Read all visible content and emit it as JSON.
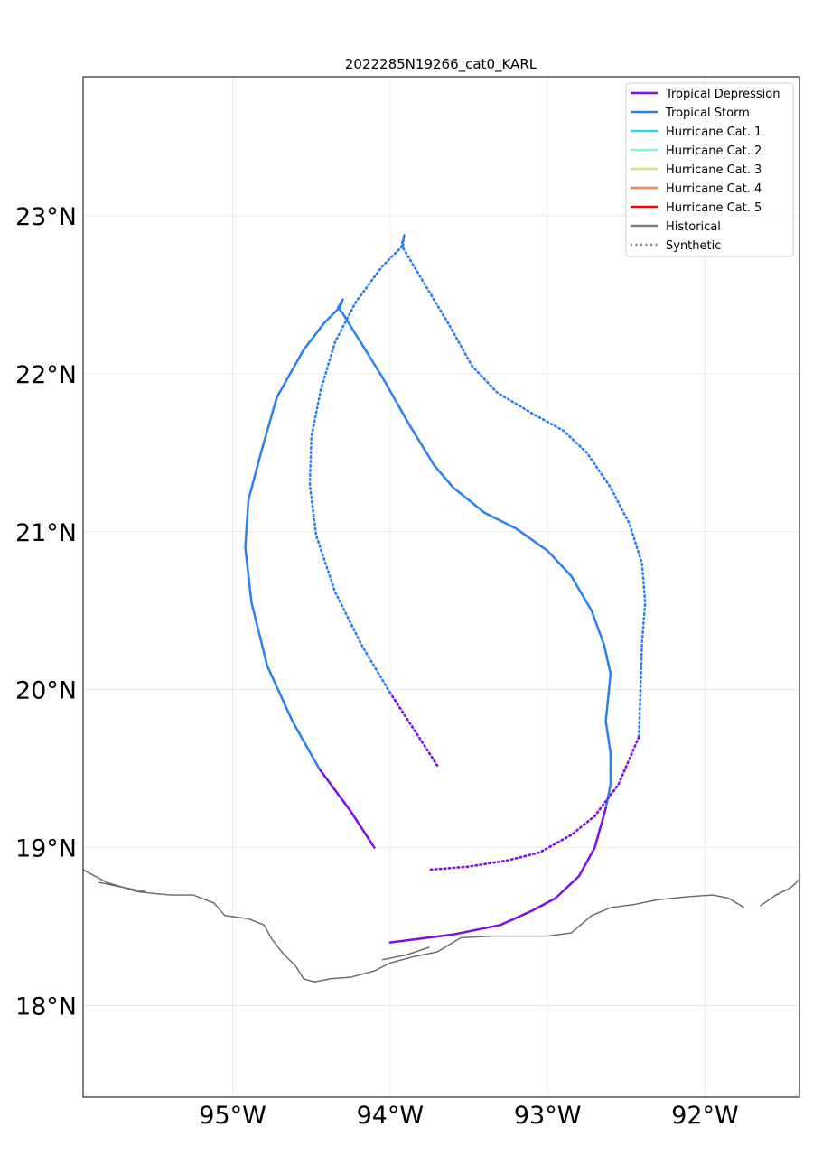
{
  "map": {
    "title": "2022285N19266_cat0_KARL",
    "extent": {
      "lon": [
        -95.95,
        -91.4
      ],
      "lat": [
        17.42,
        23.88
      ]
    },
    "lat_ticks": [
      {
        "value": 18,
        "label": "18°N"
      },
      {
        "value": 19,
        "label": "19°N"
      },
      {
        "value": 20,
        "label": "20°N"
      },
      {
        "value": 21,
        "label": "21°N"
      },
      {
        "value": 22,
        "label": "22°N"
      },
      {
        "value": 23,
        "label": "23°N"
      }
    ],
    "lon_ticks": [
      {
        "value": -95,
        "label": "95°W"
      },
      {
        "value": -94,
        "label": "94°W"
      },
      {
        "value": -93,
        "label": "93°W"
      },
      {
        "value": -92,
        "label": "92°W"
      }
    ],
    "grid": true,
    "coastline_color": "#666666"
  },
  "legend": {
    "placement": "top-right",
    "entries": [
      {
        "label": "Tropical Depression",
        "color": "#7b0ee9",
        "style": "solid"
      },
      {
        "label": "Tropical Storm",
        "color": "#2b80f0",
        "style": "solid"
      },
      {
        "label": "Hurricane Cat. 1",
        "color": "#33d6e0",
        "style": "solid"
      },
      {
        "label": "Hurricane Cat. 2",
        "color": "#85f8c3",
        "style": "solid"
      },
      {
        "label": "Hurricane Cat. 3",
        "color": "#d0e183",
        "style": "solid"
      },
      {
        "label": "Hurricane Cat. 4",
        "color": "#ff8049",
        "style": "solid"
      },
      {
        "label": "Hurricane Cat. 5",
        "color": "#ff0000",
        "style": "solid"
      },
      {
        "label": "Historical",
        "color": "#808080",
        "style": "solid"
      },
      {
        "label": "Synthetic",
        "color": "#808080",
        "style": "dotted"
      }
    ]
  },
  "tracks": [
    {
      "type": "historical",
      "segments": [
        {
          "category": "Tropical Depression",
          "color": "#7b0ee9",
          "points": [
            [
              -94.1,
              19.0
            ],
            [
              -94.25,
              19.23
            ],
            [
              -94.45,
              19.5
            ]
          ]
        },
        {
          "category": "Tropical Storm",
          "color": "#2b80f0",
          "points": [
            [
              -94.45,
              19.5
            ],
            [
              -94.62,
              19.8
            ],
            [
              -94.78,
              20.15
            ],
            [
              -94.88,
              20.55
            ],
            [
              -94.92,
              20.9
            ],
            [
              -94.9,
              21.2
            ],
            [
              -94.82,
              21.5
            ],
            [
              -94.72,
              21.85
            ],
            [
              -94.55,
              22.15
            ],
            [
              -94.42,
              22.32
            ],
            [
              -94.32,
              22.42
            ],
            [
              -94.3,
              22.47
            ],
            [
              -94.33,
              22.42
            ],
            [
              -94.3,
              22.38
            ],
            [
              -94.2,
              22.22
            ],
            [
              -94.05,
              21.98
            ],
            [
              -93.88,
              21.68
            ],
            [
              -93.72,
              21.42
            ],
            [
              -93.6,
              21.28
            ],
            [
              -93.4,
              21.12
            ],
            [
              -93.2,
              21.02
            ],
            [
              -93.0,
              20.88
            ],
            [
              -92.85,
              20.72
            ],
            [
              -92.72,
              20.5
            ],
            [
              -92.64,
              20.28
            ],
            [
              -92.6,
              20.1
            ],
            [
              -92.63,
              19.8
            ],
            [
              -92.6,
              19.6
            ],
            [
              -92.6,
              19.4
            ],
            [
              -92.63,
              19.25
            ]
          ]
        },
        {
          "category": "Tropical Depression",
          "color": "#7b0ee9",
          "points": [
            [
              -92.63,
              19.25
            ],
            [
              -92.7,
              19.0
            ],
            [
              -92.8,
              18.82
            ],
            [
              -92.95,
              18.68
            ],
            [
              -93.1,
              18.6
            ],
            [
              -93.3,
              18.51
            ],
            [
              -93.6,
              18.45
            ],
            [
              -94.0,
              18.4
            ]
          ]
        }
      ]
    },
    {
      "type": "synthetic",
      "segments": [
        {
          "category": "Tropical Depression",
          "color": "#7b0ee9",
          "points": [
            [
              -93.7,
              19.52
            ],
            [
              -93.85,
              19.75
            ],
            [
              -94.0,
              19.98
            ]
          ]
        },
        {
          "category": "Tropical Storm",
          "color": "#2b80f0",
          "points": [
            [
              -94.0,
              19.98
            ],
            [
              -94.18,
              20.28
            ],
            [
              -94.35,
              20.62
            ],
            [
              -94.47,
              20.98
            ],
            [
              -94.51,
              21.3
            ],
            [
              -94.5,
              21.6
            ],
            [
              -94.44,
              21.9
            ],
            [
              -94.35,
              22.2
            ],
            [
              -94.22,
              22.45
            ],
            [
              -94.05,
              22.68
            ],
            [
              -93.93,
              22.8
            ],
            [
              -93.91,
              22.88
            ],
            [
              -93.92,
              22.8
            ],
            [
              -93.8,
              22.6
            ],
            [
              -93.62,
              22.3
            ],
            [
              -93.48,
              22.05
            ],
            [
              -93.32,
              21.88
            ],
            [
              -93.1,
              21.75
            ],
            [
              -92.9,
              21.64
            ],
            [
              -92.75,
              21.5
            ],
            [
              -92.6,
              21.28
            ],
            [
              -92.48,
              21.05
            ],
            [
              -92.4,
              20.8
            ],
            [
              -92.38,
              20.55
            ],
            [
              -92.4,
              20.3
            ],
            [
              -92.41,
              20.0
            ],
            [
              -92.42,
              19.7
            ]
          ]
        },
        {
          "category": "Tropical Depression",
          "color": "#7b0ee9",
          "points": [
            [
              -92.42,
              19.7
            ],
            [
              -92.55,
              19.4
            ],
            [
              -92.7,
              19.2
            ],
            [
              -92.85,
              19.08
            ],
            [
              -93.05,
              18.97
            ],
            [
              -93.25,
              18.92
            ],
            [
              -93.5,
              18.88
            ],
            [
              -93.75,
              18.86
            ]
          ]
        }
      ]
    }
  ],
  "coastline": [
    [
      [
        -95.95,
        18.86
      ],
      [
        -95.8,
        18.78
      ],
      [
        -95.6,
        18.72
      ],
      [
        -95.4,
        18.7
      ],
      [
        -95.25,
        18.7
      ],
      [
        -95.12,
        18.65
      ],
      [
        -95.05,
        18.57
      ],
      [
        -94.9,
        18.55
      ],
      [
        -94.8,
        18.51
      ],
      [
        -94.75,
        18.42
      ],
      [
        -94.68,
        18.33
      ],
      [
        -94.6,
        18.25
      ],
      [
        -94.55,
        18.17
      ],
      [
        -94.48,
        18.15
      ],
      [
        -94.38,
        18.17
      ],
      [
        -94.25,
        18.18
      ],
      [
        -94.1,
        18.22
      ],
      [
        -94.0,
        18.27
      ],
      [
        -93.85,
        18.31
      ],
      [
        -93.7,
        18.34
      ],
      [
        -93.55,
        18.43
      ],
      [
        -93.35,
        18.44
      ],
      [
        -93.15,
        18.44
      ],
      [
        -93.0,
        18.44
      ],
      [
        -92.85,
        18.46
      ],
      [
        -92.72,
        18.57
      ],
      [
        -92.6,
        18.62
      ],
      [
        -92.45,
        18.64
      ],
      [
        -92.3,
        18.67
      ],
      [
        -92.1,
        18.69
      ],
      [
        -91.95,
        18.7
      ],
      [
        -91.85,
        18.68
      ],
      [
        -91.75,
        18.62
      ]
    ],
    [
      [
        -91.65,
        18.63
      ],
      [
        -91.55,
        18.7
      ],
      [
        -91.45,
        18.75
      ],
      [
        -91.4,
        18.8
      ]
    ],
    [
      [
        -93.75,
        18.37
      ],
      [
        -93.9,
        18.32
      ],
      [
        -94.05,
        18.29
      ]
    ],
    [
      [
        -95.85,
        18.78
      ],
      [
        -95.7,
        18.75
      ],
      [
        -95.55,
        18.72
      ]
    ]
  ]
}
